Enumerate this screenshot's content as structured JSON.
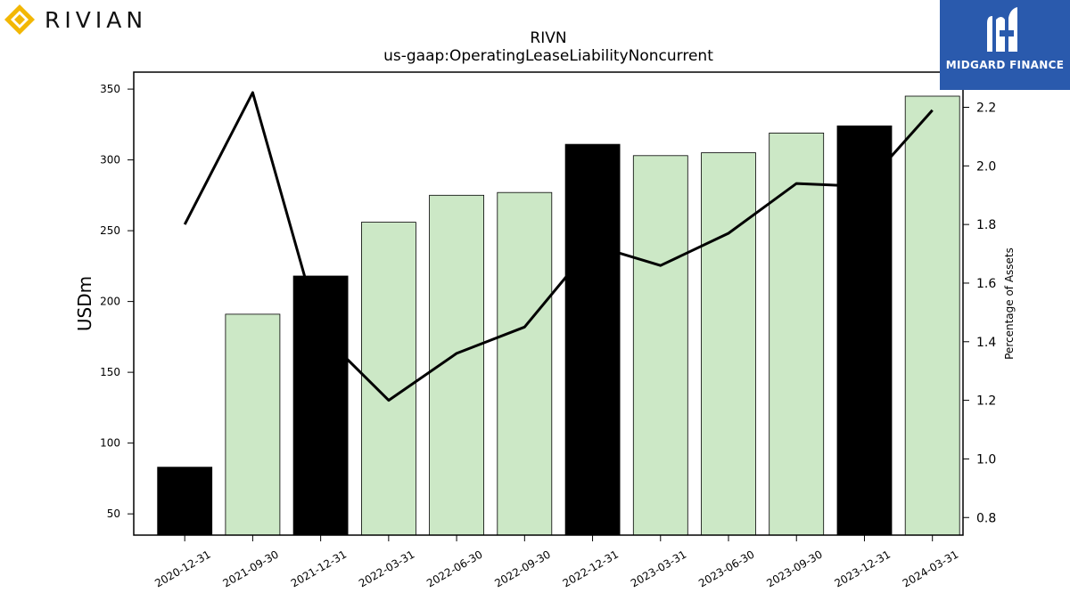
{
  "logos": {
    "left": {
      "text": "RIVIAN",
      "icon": "rivian-diamond-icon",
      "color": "#f2b705"
    },
    "right": {
      "text": "MIDGARD FINANCE",
      "icon": "midgard-m-icon",
      "background": "#2a5aad"
    }
  },
  "chart_data": {
    "type": "bar",
    "title": "RIVN",
    "subtitle": "us-gaap:OperatingLeaseLiabilityNoncurrent",
    "ylabel": "USDm",
    "y2label": "Percentage of Assets",
    "categories": [
      "2020-12-31",
      "2021-09-30",
      "2021-12-31",
      "2022-03-31",
      "2022-06-30",
      "2022-09-30",
      "2022-12-31",
      "2023-03-31",
      "2023-06-30",
      "2023-09-30",
      "2023-12-31",
      "2024-03-31"
    ],
    "series": [
      {
        "kind": "bar",
        "axis": "left",
        "values": [
          83,
          191,
          218,
          256,
          275,
          277,
          311,
          303,
          305,
          319,
          324,
          345
        ],
        "colors": [
          "#000000",
          "#cce8c6",
          "#000000",
          "#cce8c6",
          "#cce8c6",
          "#cce8c6",
          "#000000",
          "#cce8c6",
          "#cce8c6",
          "#cce8c6",
          "#000000",
          "#cce8c6"
        ]
      },
      {
        "kind": "line",
        "axis": "right",
        "color": "#000000",
        "values": [
          1.8,
          2.25,
          1.43,
          1.2,
          1.36,
          1.45,
          1.73,
          1.66,
          1.77,
          1.94,
          1.93,
          2.19
        ]
      }
    ],
    "ylim": [
      35,
      362
    ],
    "y2lim": [
      0.74,
      2.32
    ],
    "yticks": [
      50,
      100,
      150,
      200,
      250,
      300,
      350
    ],
    "y2ticks": [
      0.8,
      1.0,
      1.2,
      1.4,
      1.6,
      1.8,
      2.0,
      2.2
    ],
    "grid": false,
    "legend": "none"
  }
}
